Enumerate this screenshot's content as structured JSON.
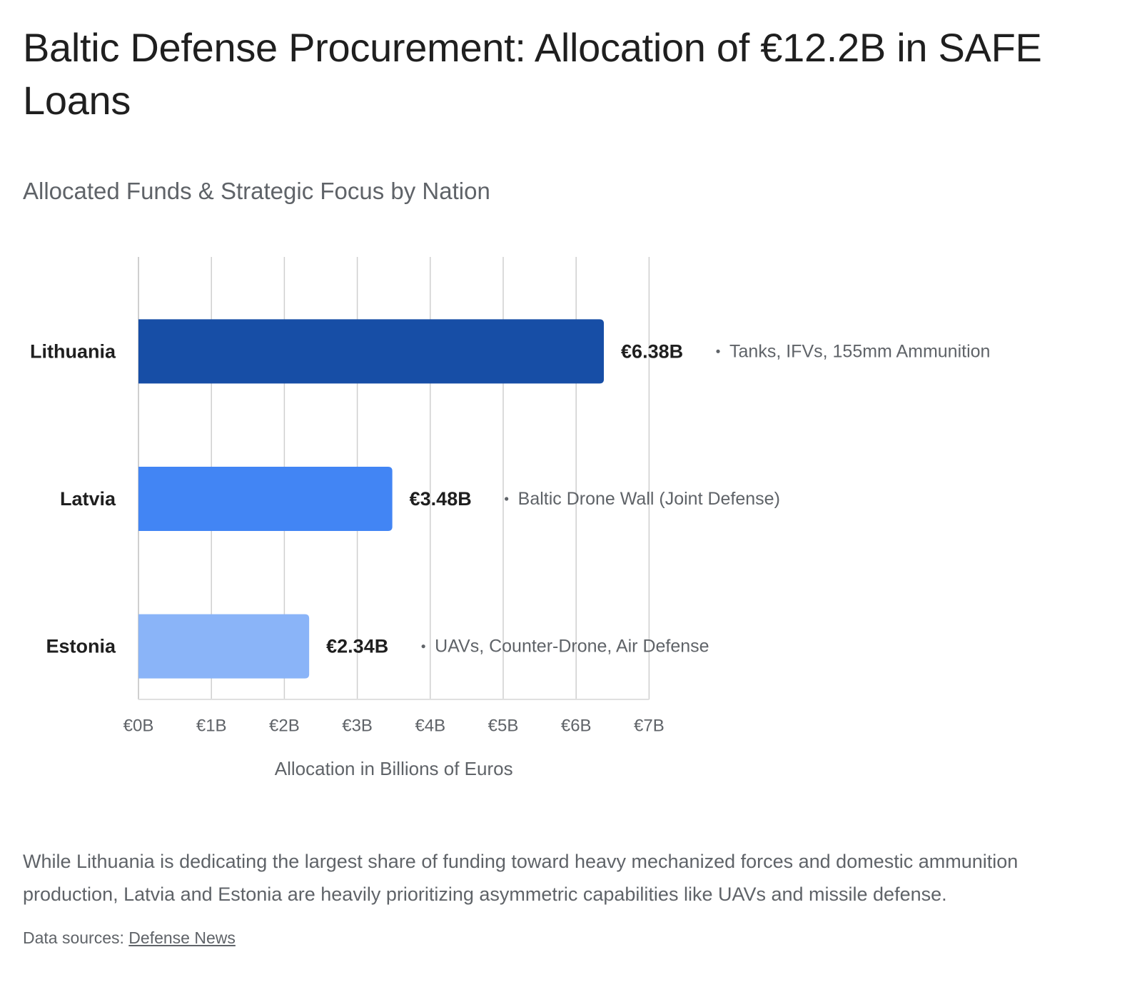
{
  "header": {
    "title": "Baltic Defense Procurement: Allocation of €12.2B in SAFE Loans"
  },
  "chart_data": {
    "type": "bar",
    "orientation": "horizontal",
    "title": "Allocated Funds & Strategic Focus by Nation",
    "xlabel": "Allocation in Billions of Euros",
    "ylabel": "",
    "xlim": [
      0,
      7
    ],
    "grid": true,
    "x_ticks": [
      0,
      1,
      2,
      3,
      4,
      5,
      6,
      7
    ],
    "x_tick_labels": [
      "€0B",
      "€1B",
      "€2B",
      "€3B",
      "€4B",
      "€5B",
      "€6B",
      "€7B"
    ],
    "categories": [
      "Lithuania",
      "Latvia",
      "Estonia"
    ],
    "values": [
      6.38,
      3.48,
      2.34
    ],
    "value_labels": [
      "€6.38B",
      "€3.48B",
      "€2.34B"
    ],
    "annotations": [
      "Tanks, IFVs, 155mm Ammunition",
      "Baltic Drone Wall (Joint Defense)",
      "UAVs, Counter-Drone, Air Defense"
    ],
    "bar_colors": [
      "#174ea6",
      "#4285f4",
      "#8ab4f8"
    ],
    "grid_color": "#cfcfcf",
    "label_color": "#1f1f1f",
    "tick_color": "#5f6368"
  },
  "narrative": {
    "text": "While Lithuania is dedicating the largest share of funding toward heavy mechanized forces and domestic ammunition production, Latvia and Estonia are heavily prioritizing asymmetric capabilities like UAVs and missile defense."
  },
  "sources": {
    "prefix": "Data sources: ",
    "link_label": "Defense News"
  }
}
